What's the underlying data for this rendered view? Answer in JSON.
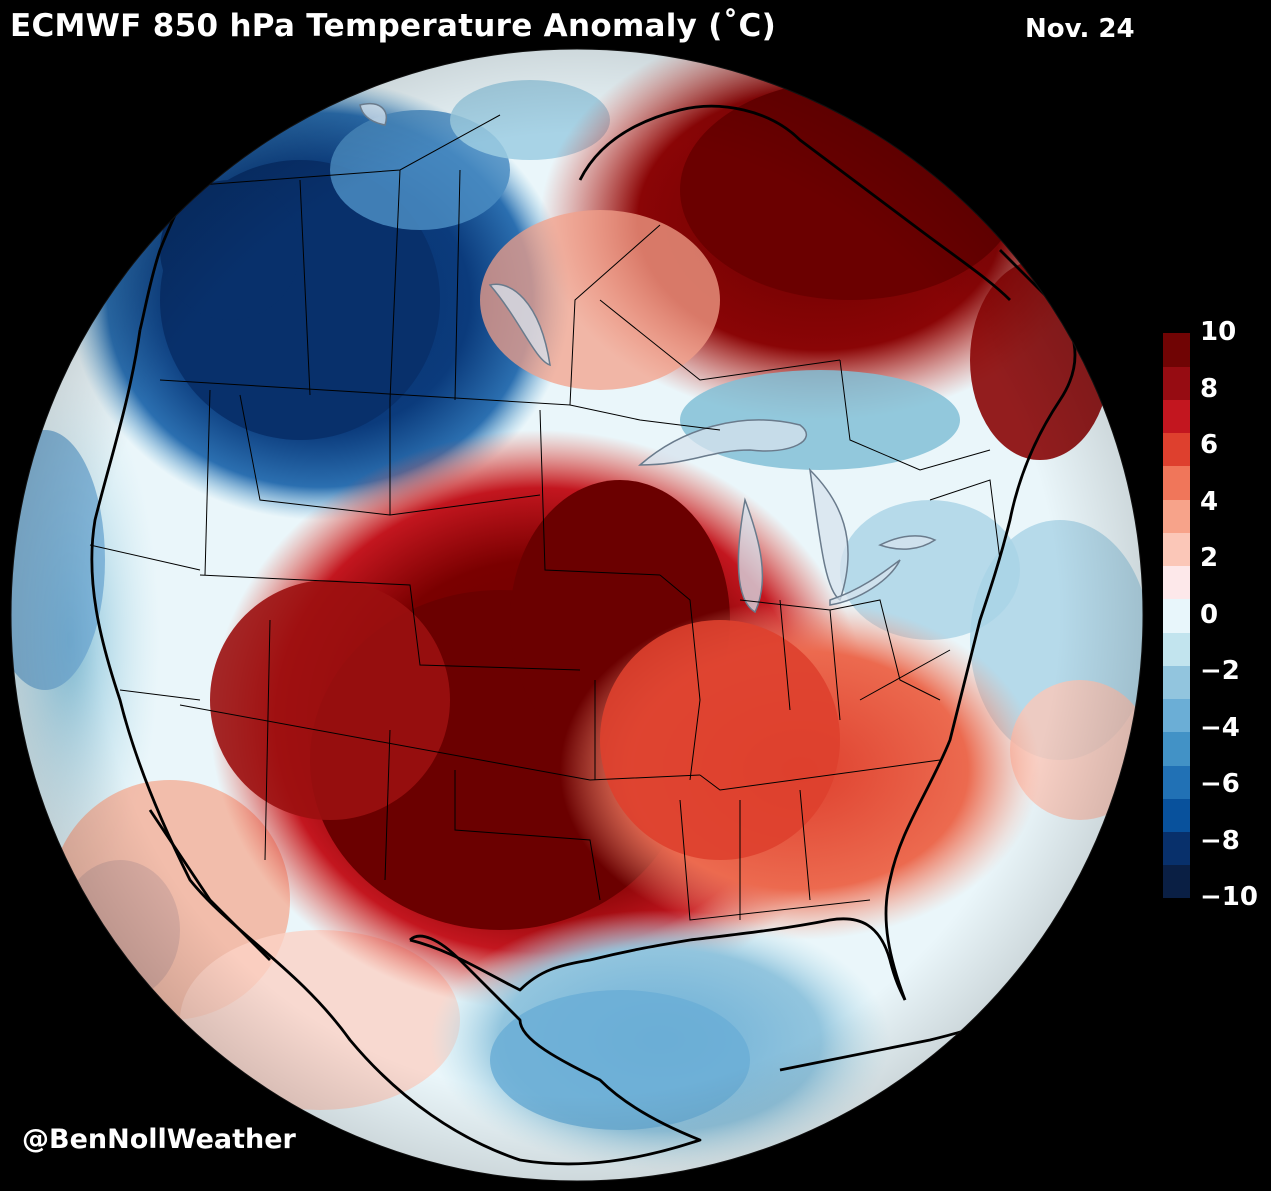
{
  "header": {
    "title": "ECMWF 850 hPa Temperature Anomaly (˚C)",
    "date": "Nov. 24"
  },
  "footer": {
    "credit": "@BenNollWeather"
  },
  "colorbar": {
    "ticks": [
      "10",
      "8",
      "6",
      "4",
      "2",
      "0",
      "−2",
      "−4",
      "−6",
      "−8",
      "−10"
    ],
    "colors": [
      "#0a1f44",
      "#08306b",
      "#08519c",
      "#2171b5",
      "#4292c6",
      "#6baed6",
      "#92c5de",
      "#c2e4ee",
      "#e8f6fb",
      "#fde8ea",
      "#fbc7b8",
      "#f7a38a",
      "#f0765a",
      "#de402e",
      "#c3161f",
      "#960c12",
      "#700404"
    ]
  },
  "map": {
    "regions": {
      "northwest_canada": "#08306b",
      "central_us": "#6b0000",
      "northeast_canada": "#7f0000",
      "southeast_us": "#e8543e",
      "gulf_of_mexico": "#7fbcd2",
      "west_coast_ocean": "#4f93c4",
      "atlantic_ocean": "#bfe2ee"
    }
  }
}
